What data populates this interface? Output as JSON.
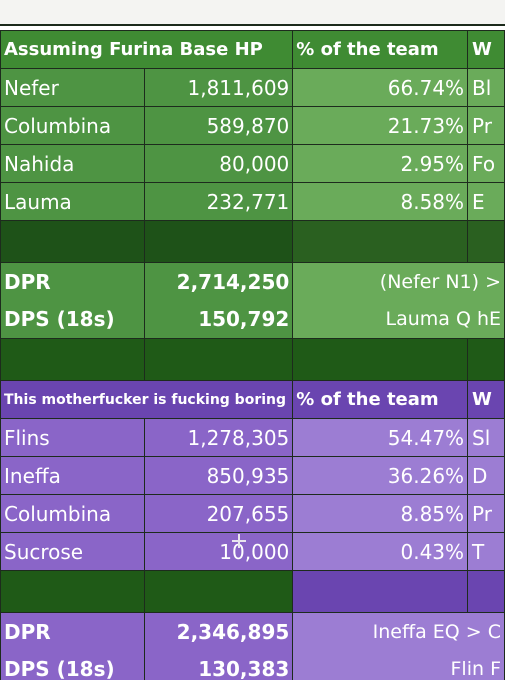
{
  "green": {
    "header": [
      "Assuming Furina Base HP",
      "% of the team",
      "W"
    ],
    "rows": [
      {
        "name": "Nefer",
        "value": "1,811,609",
        "pct": "66.74%",
        "note": "Bl"
      },
      {
        "name": "Columbina",
        "value": "589,870",
        "pct": "21.73%",
        "note": "Pr"
      },
      {
        "name": "Nahida",
        "value": "80,000",
        "pct": "2.95%",
        "note": "Fo"
      },
      {
        "name": "Lauma",
        "value": "232,771",
        "pct": "8.58%",
        "note": "E"
      }
    ],
    "dpr_label": "DPR",
    "dpr_value": "2,714,250",
    "dpr_note": "(Nefer N1) >",
    "dps_label": "DPS (18s)",
    "dps_value": "150,792",
    "dps_note": "Lauma Q hE"
  },
  "purple": {
    "header": [
      "This motherfucker is fucking boring",
      "% of the team",
      "W"
    ],
    "rows": [
      {
        "name": "Flins",
        "value": "1,278,305",
        "pct": "54.47%",
        "note": "Sl"
      },
      {
        "name": "Ineffa",
        "value": "850,935",
        "pct": "36.26%",
        "note": "D"
      },
      {
        "name": "Columbina",
        "value": "207,655",
        "pct": "8.85%",
        "note": "Pr"
      },
      {
        "name": "Sucrose",
        "value": "10,000",
        "pct": "0.43%",
        "note": "T"
      }
    ],
    "dpr_label": "DPR",
    "dpr_value": "2,346,895",
    "dpr_note": "Ineffa EQ > C",
    "dps_label": "DPS (18s)",
    "dps_value": "130,383",
    "dps_note": "Flin F"
  },
  "colors": {
    "green_header": "#3f8b33",
    "green_body": "#4e9443",
    "green_light": "#6aab5a",
    "dark_green": "#1f5a17",
    "purple_header": "#6a45b0",
    "purple_body": "#8a65c8",
    "purple_light": "#9c7dd3"
  }
}
